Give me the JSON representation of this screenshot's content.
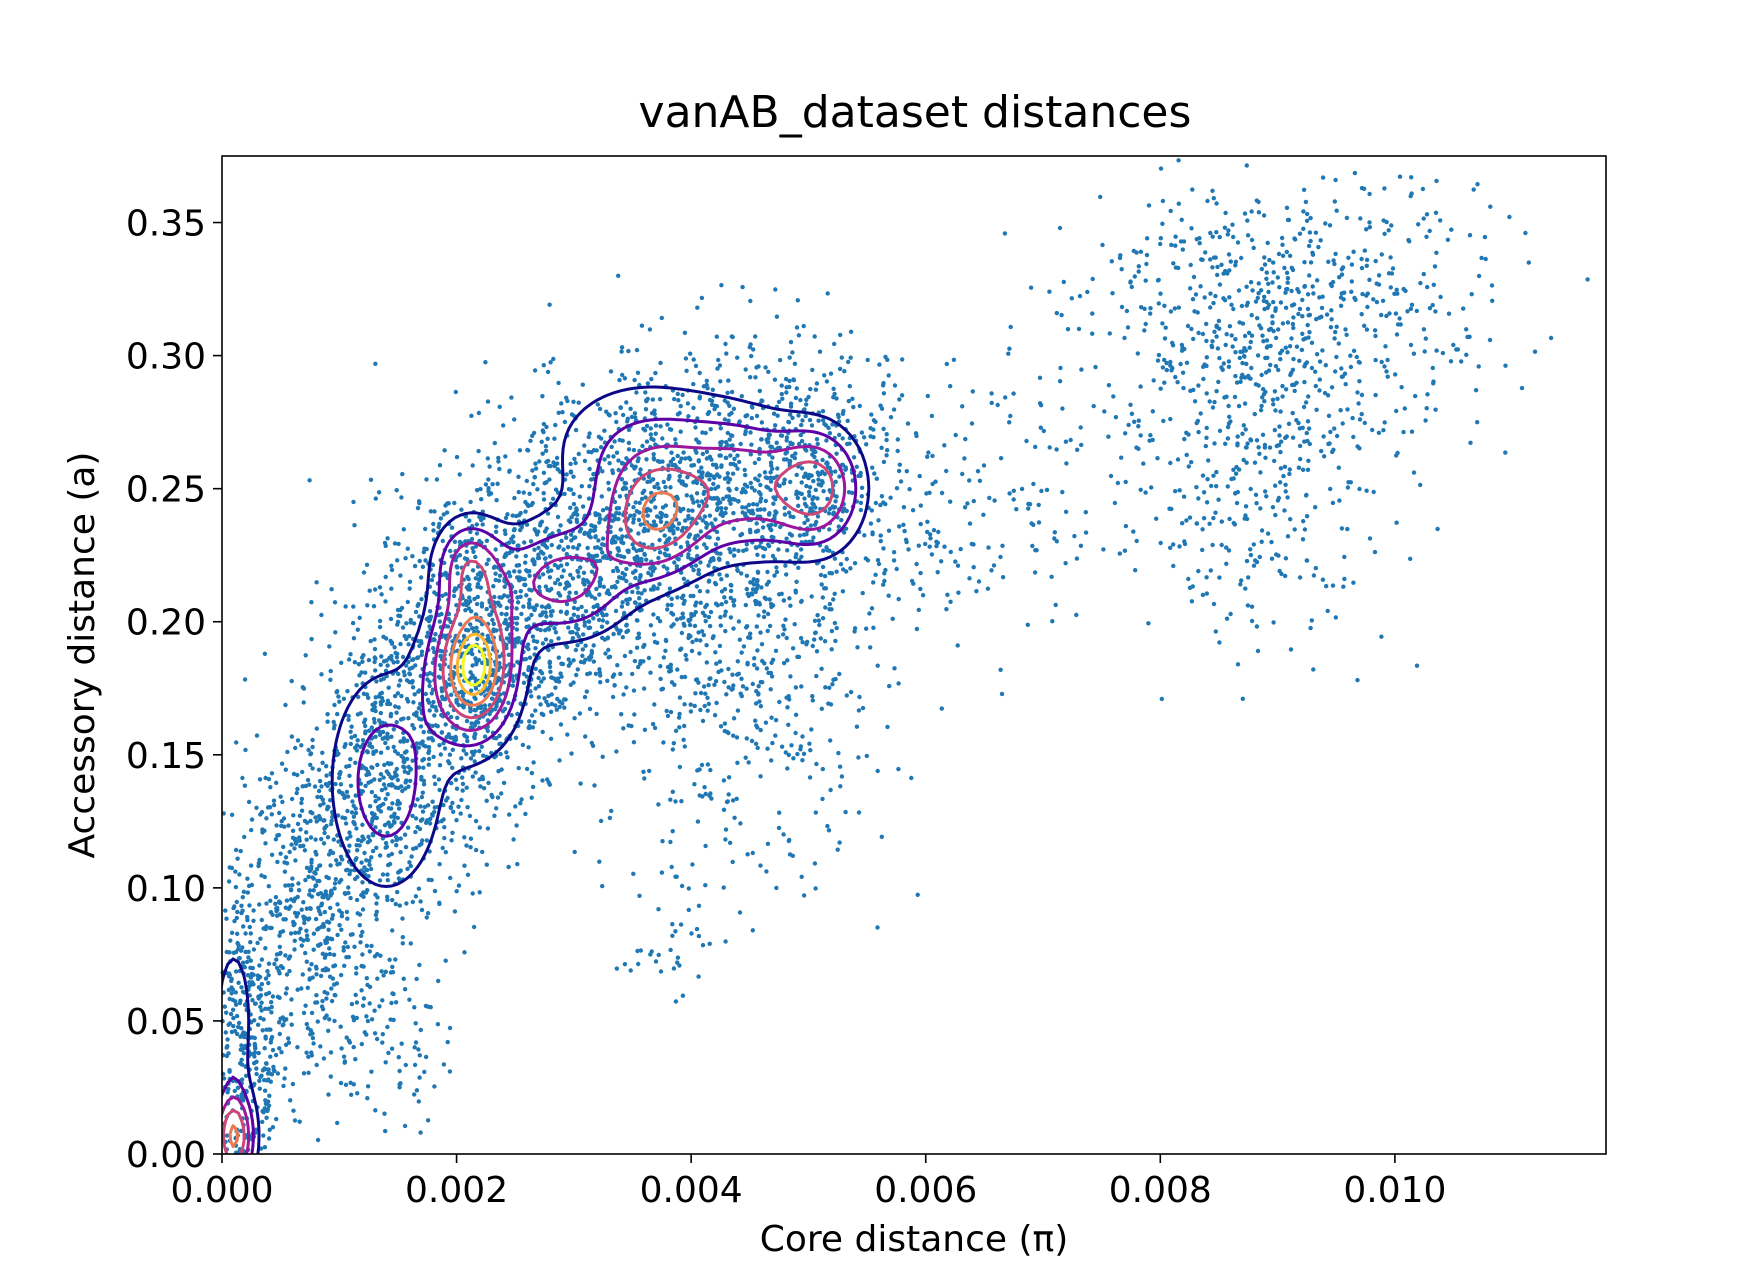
{
  "chart_data": {
    "type": "scatter",
    "title": "vanAB_dataset distances",
    "xlabel": "Core distance (π)",
    "ylabel": "Accessory distance (a)",
    "xlim": [
      0.0,
      0.0118
    ],
    "ylim": [
      0.0,
      0.375
    ],
    "x_ticks": [
      0.0,
      0.002,
      0.004,
      0.006,
      0.008,
      0.01
    ],
    "x_tick_labels": [
      "0.000",
      "0.002",
      "0.004",
      "0.006",
      "0.008",
      "0.010"
    ],
    "y_ticks": [
      0.0,
      0.05,
      0.1,
      0.15,
      0.2,
      0.25,
      0.3,
      0.35
    ],
    "y_tick_labels": [
      "0.00",
      "0.05",
      "0.10",
      "0.15",
      "0.20",
      "0.25",
      "0.30",
      "0.35"
    ],
    "grid": false,
    "legend": "none",
    "point_color": "#1f77b4",
    "contour_colors": [
      "#0d0887",
      "#5c01a6",
      "#9c179e",
      "#cc4778",
      "#ed7953",
      "#fdb42f",
      "#f0f921"
    ],
    "point_clusters": [
      {
        "cx": 0.0002,
        "cy": 0.04,
        "sx": 0.00018,
        "sy": 0.035,
        "n": 450
      },
      {
        "cx": 0.0008,
        "cy": 0.09,
        "sx": 0.0003,
        "sy": 0.035,
        "n": 500
      },
      {
        "cx": 0.0014,
        "cy": 0.14,
        "sx": 0.0004,
        "sy": 0.03,
        "n": 650
      },
      {
        "cx": 0.0021,
        "cy": 0.19,
        "sx": 0.0004,
        "sy": 0.03,
        "n": 850
      },
      {
        "cx": 0.003,
        "cy": 0.22,
        "sx": 0.0005,
        "sy": 0.03,
        "n": 850
      },
      {
        "cx": 0.004,
        "cy": 0.245,
        "sx": 0.0005,
        "sy": 0.028,
        "n": 750
      },
      {
        "cx": 0.005,
        "cy": 0.255,
        "sx": 0.0005,
        "sy": 0.025,
        "n": 550
      },
      {
        "cx": 0.0045,
        "cy": 0.17,
        "sx": 0.0006,
        "sy": 0.035,
        "n": 400
      },
      {
        "cx": 0.0062,
        "cy": 0.235,
        "sx": 0.0005,
        "sy": 0.02,
        "n": 90
      },
      {
        "cx": 0.007,
        "cy": 0.26,
        "sx": 0.0005,
        "sy": 0.03,
        "n": 70
      },
      {
        "cx": 0.0088,
        "cy": 0.31,
        "sx": 0.0007,
        "sy": 0.03,
        "n": 650
      },
      {
        "cx": 0.0088,
        "cy": 0.24,
        "sx": 0.0006,
        "sy": 0.025,
        "n": 220
      },
      {
        "cx": 0.01,
        "cy": 0.32,
        "sx": 0.0006,
        "sy": 0.025,
        "n": 120
      },
      {
        "cx": 0.0038,
        "cy": 0.08,
        "sx": 0.0002,
        "sy": 0.01,
        "n": 35
      },
      {
        "cx": 0.0015,
        "cy": 0.04,
        "sx": 0.0002,
        "sy": 0.015,
        "n": 60
      }
    ],
    "density_peaks": [
      {
        "cx": 0.00022,
        "cy": 0.185,
        "sx": 0.00028,
        "sy": 0.022,
        "w": 1.0,
        "note": "unused"
      },
      {
        "cx": 0.00215,
        "cy": 0.183,
        "sx": 0.00024,
        "sy": 0.018,
        "w": 1.0
      },
      {
        "cx": 0.0001,
        "cy": 0.006,
        "sx": 0.00012,
        "sy": 0.012,
        "w": 0.75
      },
      {
        "cx": 0.0001,
        "cy": 0.05,
        "sx": 0.00012,
        "sy": 0.022,
        "w": 0.28
      },
      {
        "cx": 0.0014,
        "cy": 0.14,
        "sx": 0.00035,
        "sy": 0.03,
        "w": 0.38
      },
      {
        "cx": 0.0021,
        "cy": 0.222,
        "sx": 0.0002,
        "sy": 0.012,
        "w": 0.45
      },
      {
        "cx": 0.0029,
        "cy": 0.215,
        "sx": 0.0004,
        "sy": 0.015,
        "w": 0.5
      },
      {
        "cx": 0.0037,
        "cy": 0.238,
        "sx": 0.0003,
        "sy": 0.015,
        "w": 0.6
      },
      {
        "cx": 0.0045,
        "cy": 0.25,
        "sx": 0.0004,
        "sy": 0.018,
        "w": 0.45
      },
      {
        "cx": 0.0051,
        "cy": 0.25,
        "sx": 0.00025,
        "sy": 0.015,
        "w": 0.55
      },
      {
        "cx": 0.0036,
        "cy": 0.265,
        "sx": 0.0006,
        "sy": 0.02,
        "w": 0.3
      }
    ],
    "contour_levels": [
      0.16,
      0.3,
      0.45,
      0.6,
      0.75,
      0.87,
      0.95
    ]
  }
}
